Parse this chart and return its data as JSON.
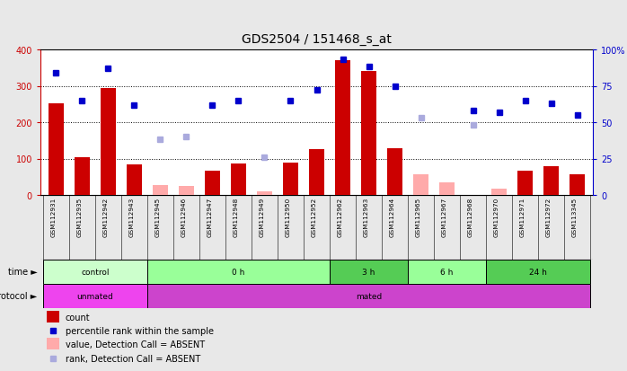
{
  "title": "GDS2504 / 151468_s_at",
  "samples": [
    "GSM112931",
    "GSM112935",
    "GSM112942",
    "GSM112943",
    "GSM112945",
    "GSM112946",
    "GSM112947",
    "GSM112948",
    "GSM112949",
    "GSM112950",
    "GSM112952",
    "GSM112962",
    "GSM112963",
    "GSM112964",
    "GSM112965",
    "GSM112967",
    "GSM112968",
    "GSM112970",
    "GSM112971",
    "GSM112972",
    "GSM113345"
  ],
  "count_values": [
    252,
    104,
    293,
    85,
    null,
    null,
    67,
    87,
    null,
    88,
    127,
    371,
    340,
    128,
    null,
    null,
    null,
    null,
    66,
    80,
    58
  ],
  "count_absent": [
    null,
    null,
    null,
    null,
    28,
    25,
    null,
    null,
    10,
    null,
    null,
    null,
    null,
    null,
    58,
    35,
    null,
    18,
    null,
    null,
    null
  ],
  "percentile_values": [
    84,
    65,
    87,
    62,
    null,
    null,
    62,
    65,
    null,
    65,
    72,
    93,
    88,
    75,
    null,
    null,
    58,
    57,
    65,
    63,
    55
  ],
  "percentile_absent": [
    null,
    null,
    null,
    null,
    38,
    40,
    null,
    null,
    26,
    null,
    null,
    null,
    null,
    null,
    53,
    null,
    48,
    null,
    null,
    null,
    null
  ],
  "time_groups": [
    {
      "label": "control",
      "start": 0,
      "end": 4,
      "color": "#ccffcc"
    },
    {
      "label": "0 h",
      "start": 4,
      "end": 11,
      "color": "#99ff99"
    },
    {
      "label": "3 h",
      "start": 11,
      "end": 14,
      "color": "#55cc55"
    },
    {
      "label": "6 h",
      "start": 14,
      "end": 17,
      "color": "#99ff99"
    },
    {
      "label": "24 h",
      "start": 17,
      "end": 21,
      "color": "#55cc55"
    }
  ],
  "protocol_groups": [
    {
      "label": "unmated",
      "start": 0,
      "end": 4,
      "color": "#ee44ee"
    },
    {
      "label": "mated",
      "start": 4,
      "end": 21,
      "color": "#cc44cc"
    }
  ],
  "ylim_left": [
    0,
    400
  ],
  "ylim_right": [
    0,
    100
  ],
  "bar_color": "#cc0000",
  "bar_absent_color": "#ffaaaa",
  "dot_color": "#0000cc",
  "dot_absent_color": "#aaaadd",
  "fig_bg": "#e8e8e8",
  "plot_bg": "#ffffff",
  "label_bg": "#cccccc",
  "right_axis_color": "#0000cc",
  "left_axis_color": "#cc0000"
}
